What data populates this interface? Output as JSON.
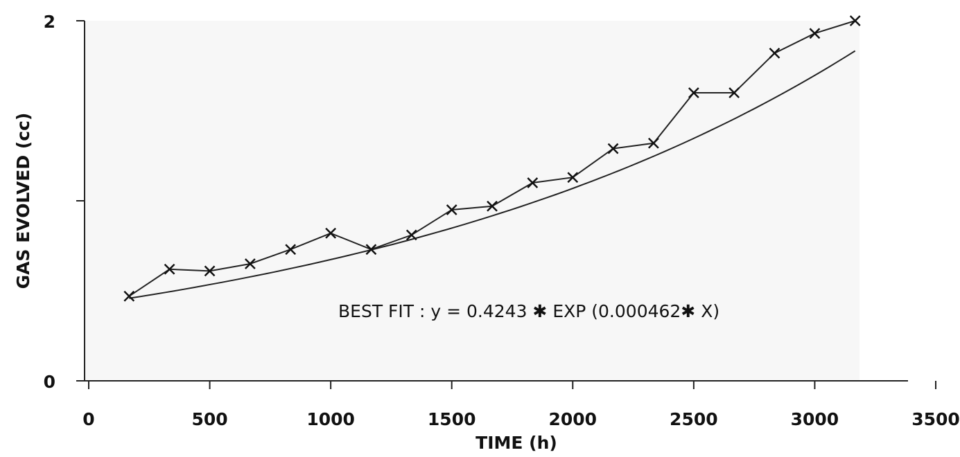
{
  "chart_data": {
    "type": "line",
    "xlabel": "TIME (h)",
    "ylabel": "GAS EVOLVED (cc)",
    "xlim": [
      0,
      3500
    ],
    "ylim": [
      0,
      2
    ],
    "x_ticks": [
      "0",
      "500",
      "1000",
      "1500",
      "2000",
      "2500",
      "3000",
      "3500"
    ],
    "y_ticks": [
      "0",
      "2"
    ],
    "grid": false,
    "annotation": "BEST FIT : y = 0.4243 ✱ EXP (0.000462✱ X)",
    "series": [
      {
        "marker": "x",
        "x": [
          167,
          334,
          500,
          667,
          834,
          1000,
          1167,
          1334,
          1500,
          1667,
          1834,
          2000,
          2167,
          2334,
          2500,
          2667,
          2834,
          3000,
          3167
        ],
        "y": [
          0.47,
          0.62,
          0.61,
          0.65,
          0.73,
          0.82,
          0.73,
          0.81,
          0.95,
          0.97,
          1.1,
          1.13,
          1.29,
          1.32,
          1.6,
          1.6,
          1.82,
          1.93,
          2.0
        ]
      }
    ],
    "fit": {
      "type": "exponential",
      "a": 0.4243,
      "b": 0.000462,
      "x_range": [
        167,
        3167
      ]
    }
  }
}
